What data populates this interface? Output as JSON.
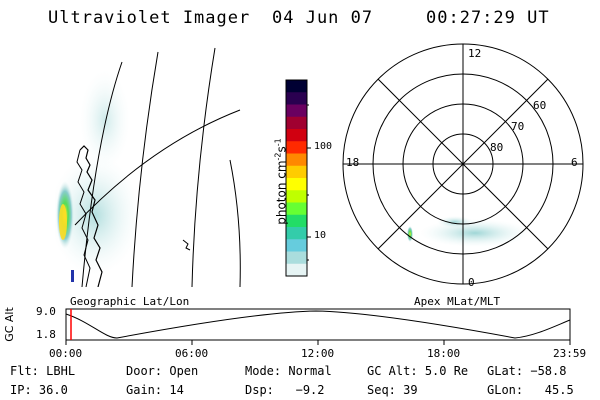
{
  "header": {
    "title": "Ultraviolet Imager",
    "date": "04 Jun 07",
    "time": "00:27:29 UT"
  },
  "left_panel": {
    "caption": "Geographic Lat/Lon"
  },
  "colorbar": {
    "unit_label": "photon cm",
    "unit_exp1": "-2",
    "unit_s": "s",
    "unit_exp2": "-1",
    "ticks": [
      "100",
      "10"
    ],
    "colors": [
      "#000033",
      "#2a0050",
      "#6a0060",
      "#a00030",
      "#d00010",
      "#ff2a00",
      "#ff8800",
      "#ffcc00",
      "#ffff00",
      "#bfff00",
      "#66ff33",
      "#22dd66",
      "#33ccaa",
      "#66ccdd",
      "#aadddd",
      "#e6f4f4"
    ]
  },
  "polar_plot": {
    "caption": "Apex  MLat/MLT",
    "mlt_labels": {
      "top": "12",
      "left": "18",
      "right": "6",
      "bottom": "0"
    },
    "lat_labels": [
      "60",
      "70",
      "80"
    ]
  },
  "timeline": {
    "axis_label": "GC Alt",
    "y_ticks": [
      "9.0",
      "1.8"
    ],
    "x_ticks": [
      "00:00",
      "06:00",
      "12:00",
      "18:00",
      "23:59"
    ],
    "marker_color": "#ff0000"
  },
  "status": {
    "row1": [
      {
        "label": "Flt:",
        "value": "LBHL"
      },
      {
        "label": "Door:",
        "value": "Open"
      },
      {
        "label": "Mode:",
        "value": "Normal"
      },
      {
        "label": "GC Alt:",
        "value": "5.0 Re"
      },
      {
        "label": "GLat:",
        "value": "−58.8"
      }
    ],
    "row2": [
      {
        "label": "IP:",
        "value": "36.0"
      },
      {
        "label": "Gain:",
        "value": "14"
      },
      {
        "label": "Dsp:",
        "value": "  −9.2"
      },
      {
        "label": "Seq:",
        "value": "39"
      },
      {
        "label": "GLon:",
        "value": "  45.5"
      }
    ]
  }
}
